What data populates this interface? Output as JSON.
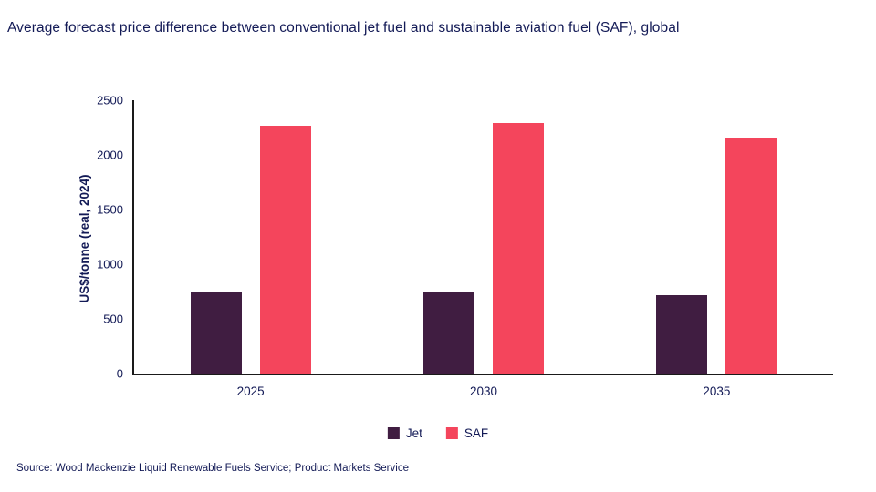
{
  "colors": {
    "navy": "#131A56",
    "axis": "#1a1a1a",
    "jet_bar": "#401D41",
    "saf_bar": "#F4455C"
  },
  "source_line": "Source: Wood Mackenzie Liquid Renewable Fuels Service; Product Markets Service",
  "chart_data": {
    "type": "bar",
    "title": "Average forecast price difference between conventional jet fuel and sustainable aviation fuel (SAF), global",
    "categories": [
      "2025",
      "2030",
      "2035"
    ],
    "series": [
      {
        "name": "Jet",
        "color": "#401D41",
        "values": [
          740,
          745,
          715
        ]
      },
      {
        "name": "SAF",
        "color": "#F4455C",
        "values": [
          2270,
          2295,
          2160
        ]
      }
    ],
    "xlabel": "",
    "ylabel": "US$/tonne (real, 2024)",
    "ylim": [
      0,
      2500
    ],
    "yticks": [
      0,
      500,
      1000,
      1500,
      2000,
      2500
    ],
    "grid": false,
    "legend_position": "bottom"
  }
}
